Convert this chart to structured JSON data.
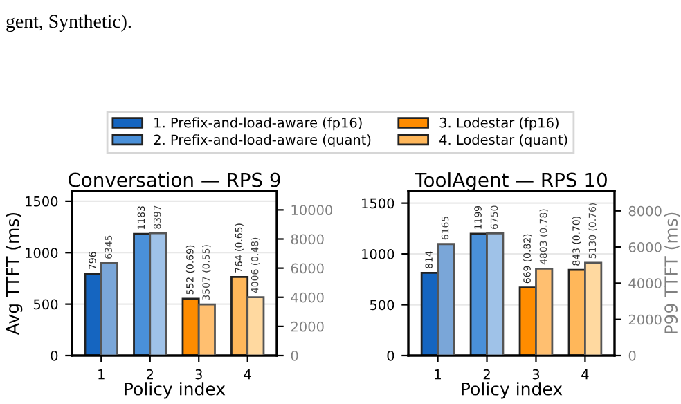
{
  "chart_data": [
    {
      "type": "bar",
      "title": "Conversation — RPS 9",
      "xlabel": "Policy index",
      "ylabel": "Avg TTFT (ms)",
      "annotations": [
        "gent, Synthetic)."
      ],
      "categories": [
        "1",
        "2",
        "3",
        "4"
      ],
      "ylim": [
        0,
        1600
      ],
      "yticks": [
        0,
        500,
        1000,
        1500
      ],
      "y2lim": [
        0,
        11300
      ],
      "y2ticks": [
        0,
        2000,
        4000,
        6000,
        8000,
        10000
      ],
      "grid": "y",
      "legend": "top",
      "series": [
        {
          "name": "1. Prefix-and-load-aware (fp16)",
          "color": "#1565c0",
          "values": [
            796,
            null,
            null,
            null
          ],
          "value_labels": [
            "796",
            null,
            null,
            null
          ]
        },
        {
          "color": "#7aa6d8",
          "axis": "y2",
          "values": [
            6345,
            null,
            null,
            null
          ],
          "value_labels": [
            "6345",
            null,
            null,
            null
          ]
        },
        {
          "name": "2. Prefix-and-load-aware (quant)",
          "color": "#4a90d9",
          "values": [
            null,
            1183,
            null,
            null
          ],
          "value_labels": [
            null,
            "1183",
            null,
            null
          ]
        },
        {
          "color": "#9fc2e8",
          "axis": "y2",
          "values": [
            null,
            8397,
            null,
            null
          ],
          "value_labels": [
            null,
            "8397",
            null,
            null
          ]
        },
        {
          "name": "3. Lodestar (fp16)",
          "color": "#ff8c00",
          "values": [
            null,
            null,
            552,
            null
          ],
          "value_labels": [
            null,
            null,
            "552 (0.69)",
            null
          ]
        },
        {
          "color": "#ffbf70",
          "axis": "y2",
          "values": [
            null,
            null,
            3507,
            null
          ],
          "value_labels": [
            null,
            null,
            "3507 (0.55)",
            null
          ]
        },
        {
          "name": "4. Lodestar (quant)",
          "color": "#ffb75a",
          "values": [
            null,
            null,
            null,
            764
          ],
          "value_labels": [
            null,
            null,
            null,
            "764 (0.65)"
          ]
        },
        {
          "color": "#ffd9a0",
          "axis": "y2",
          "values": [
            null,
            null,
            null,
            4006
          ],
          "value_labels": [
            null,
            null,
            null,
            "4006 (0.48)"
          ]
        }
      ]
    },
    {
      "type": "bar",
      "title": "ToolAgent — RPS 10",
      "xlabel": "Policy index",
      "y2label": "P99 TTFT (ms)",
      "categories": [
        "1",
        "2",
        "3",
        "4"
      ],
      "ylim": [
        0,
        1620
      ],
      "yticks": [
        0,
        500,
        1000,
        1500
      ],
      "y2lim": [
        0,
        9100
      ],
      "y2ticks": [
        0,
        2000,
        4000,
        6000,
        8000
      ],
      "grid": "y",
      "series": [
        {
          "color": "#1565c0",
          "values": [
            814,
            null,
            null,
            null
          ],
          "value_labels": [
            "814",
            null,
            null,
            null
          ]
        },
        {
          "color": "#7aa6d8",
          "axis": "y2",
          "values": [
            6165,
            null,
            null,
            null
          ],
          "value_labels": [
            "6165",
            null,
            null,
            null
          ]
        },
        {
          "color": "#4a90d9",
          "values": [
            null,
            1199,
            null,
            null
          ],
          "value_labels": [
            null,
            "1199",
            null,
            null
          ]
        },
        {
          "color": "#9fc2e8",
          "axis": "y2",
          "values": [
            null,
            6750,
            null,
            null
          ],
          "value_labels": [
            null,
            "6750",
            null,
            null
          ]
        },
        {
          "color": "#ff8c00",
          "values": [
            null,
            null,
            669,
            null
          ],
          "value_labels": [
            null,
            null,
            "669 (0.82)",
            null
          ]
        },
        {
          "color": "#ffbf70",
          "axis": "y2",
          "values": [
            null,
            null,
            4803,
            null
          ],
          "value_labels": [
            null,
            null,
            "4803 (0.78)",
            null
          ]
        },
        {
          "color": "#ffb75a",
          "values": [
            null,
            null,
            null,
            843
          ],
          "value_labels": [
            null,
            null,
            null,
            "843 (0.70)"
          ]
        },
        {
          "color": "#ffd9a0",
          "axis": "y2",
          "values": [
            null,
            null,
            null,
            5130
          ],
          "value_labels": [
            null,
            null,
            null,
            "5130 (0.76)"
          ]
        }
      ]
    }
  ]
}
